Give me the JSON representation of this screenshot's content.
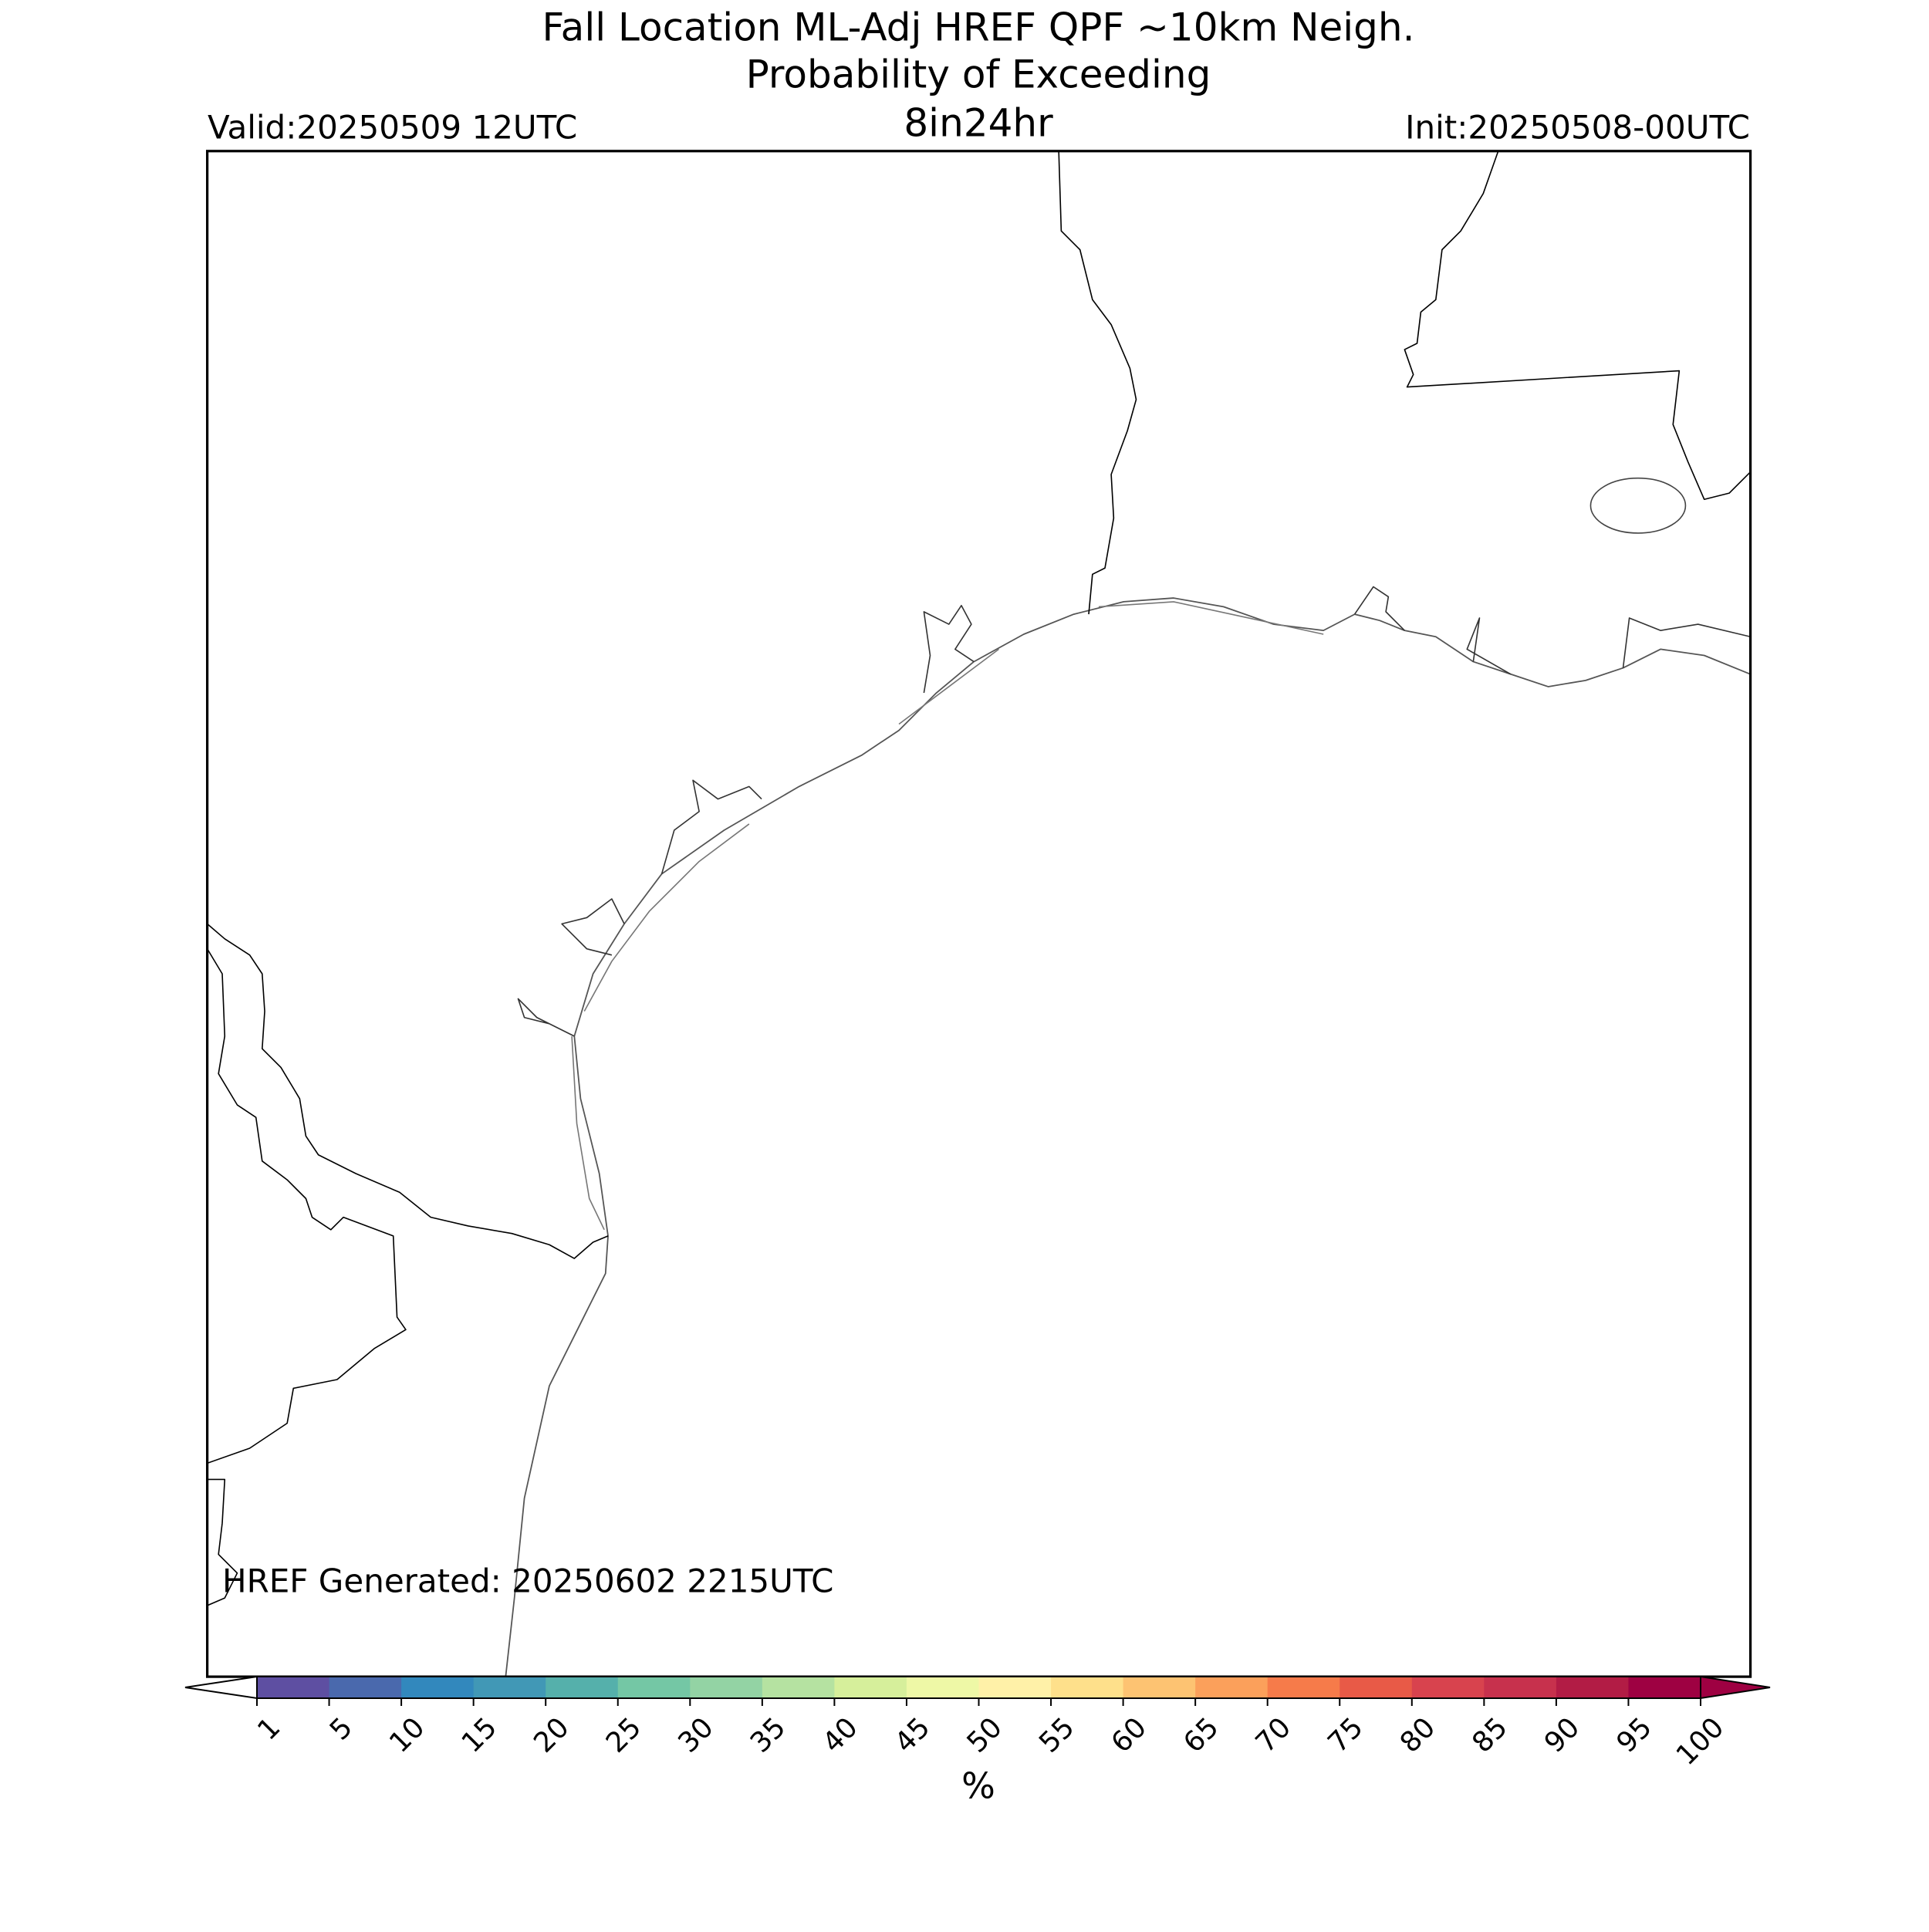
{
  "title": [
    "Fall Location ML-Adj HREF QPF ~10km Neigh.",
    "Probability of Exceeding",
    "8in24hr"
  ],
  "valid": "Valid:20250509 12UTC",
  "init": "Init:20250508-00UTC",
  "generated": "HREF Generated: 20250602 2215UTC",
  "colorbar": {
    "ticks": [
      1,
      5,
      10,
      15,
      20,
      25,
      30,
      35,
      40,
      45,
      50,
      55,
      60,
      65,
      70,
      75,
      80,
      85,
      90,
      95,
      100
    ],
    "colors": [
      "#5e4fa2",
      "#4a69ad",
      "#3288bd",
      "#4198b6",
      "#55b0ab",
      "#74c7a5",
      "#93d3a4",
      "#b5e2a1",
      "#d6ef9b",
      "#eef8a6",
      "#fff1a8",
      "#fee08b",
      "#fdc372",
      "#fba05b",
      "#f67b4a",
      "#e85a47",
      "#d8434e",
      "#c7314d",
      "#b21c45",
      "#9e0142"
    ],
    "under_color": "#ffffff",
    "over_color": "#9e0142",
    "label": "%"
  }
}
